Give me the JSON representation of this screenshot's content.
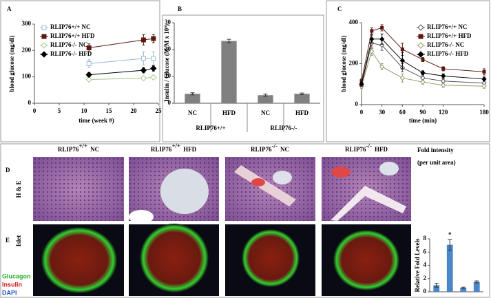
{
  "panel_labels": [
    "A",
    "B",
    "C",
    "D",
    "E"
  ],
  "chart_data": [
    {
      "type": "line",
      "xlabel": "time (week #)",
      "ylabel": "blood glucose (mg/dl)",
      "xlim": [
        0,
        25
      ],
      "xticks": [
        0,
        5,
        10,
        15,
        20,
        25
      ],
      "ylim": [
        0,
        300
      ],
      "yticks": [
        0,
        100,
        200,
        300
      ],
      "legend": "upper left",
      "x": [
        11,
        22,
        24
      ],
      "series": [
        {
          "name": "RLIP76+/+ NC",
          "color": "#9bb7d4",
          "marker": "square",
          "open": true,
          "values": [
            150,
            170,
            170
          ],
          "errors": [
            15,
            25,
            25
          ]
        },
        {
          "name": "RLIP76+/+ HFD",
          "color": "#5a1a12",
          "marker": "square",
          "open": false,
          "values": [
            210,
            240,
            245
          ],
          "errors": [
            15,
            20,
            15
          ]
        },
        {
          "name": "RLIP76-/- NC",
          "color": "#a8c48a",
          "marker": "diamond",
          "open": true,
          "values": [
            90,
            95,
            98
          ],
          "errors": [
            6,
            6,
            6
          ]
        },
        {
          "name": "RLIP76-/- HFD",
          "color": "#000000",
          "marker": "diamond",
          "open": false,
          "values": [
            108,
            125,
            132
          ],
          "errors": [
            8,
            10,
            10
          ]
        }
      ]
    },
    {
      "type": "bar",
      "ylabel": "Insulin / Glucose (M/M x 10⁹)",
      "categories": [
        "NC",
        "HFD",
        "NC",
        "HFD"
      ],
      "groups": [
        "RLIP76+/+",
        "RLIP76-/-"
      ],
      "values": [
        3.5,
        23.2,
        3.0,
        3.5
      ],
      "errors": [
        0.4,
        0.6,
        0.4,
        0.3
      ],
      "color": "#808080",
      "ylim": [
        0,
        30
      ],
      "yticks": [
        0,
        10,
        20,
        30
      ]
    },
    {
      "type": "line",
      "xlabel": "time (min)",
      "ylabel": "blood glucose (mg/dl)",
      "xlim": [
        0,
        180
      ],
      "xticks": [
        0,
        30,
        60,
        90,
        120,
        180
      ],
      "ylim": [
        0,
        400
      ],
      "yticks": [
        0,
        200,
        400
      ],
      "legend": "upper right",
      "x": [
        0,
        15,
        30,
        60,
        90,
        120,
        180
      ],
      "series": [
        {
          "name": "RLIP76+/+ NC",
          "color": "#555555",
          "marker": "diamond",
          "open": true,
          "values": [
            95,
            300,
            290,
            180,
            130,
            115,
            105
          ],
          "errors": [
            10,
            25,
            25,
            20,
            10,
            10,
            10
          ]
        },
        {
          "name": "RLIP76+/+ HFD",
          "color": "#5a1a12",
          "marker": "square",
          "open": false,
          "values": [
            115,
            360,
            375,
            270,
            220,
            175,
            160
          ],
          "errors": [
            10,
            15,
            15,
            30,
            10,
            10,
            15
          ]
        },
        {
          "name": "RLIP76-/- NC",
          "color": "#9a9a70",
          "marker": "diamond",
          "open": true,
          "values": [
            90,
            260,
            185,
            130,
            110,
            95,
            90
          ],
          "errors": [
            10,
            20,
            15,
            20,
            10,
            10,
            10
          ]
        },
        {
          "name": "RLIP76-/- HFD",
          "color": "#000000",
          "marker": "diamond",
          "open": false,
          "values": [
            100,
            320,
            320,
            215,
            155,
            140,
            125
          ],
          "errors": [
            10,
            20,
            25,
            40,
            10,
            10,
            10
          ]
        }
      ]
    },
    {
      "type": "bar",
      "ylabel": "Relative Fold Levels",
      "categories": [
        null,
        null,
        null,
        null
      ],
      "values": [
        1.0,
        7.1,
        0.6,
        1.5
      ],
      "errors": [
        0.3,
        0.8,
        0.1,
        0.15
      ],
      "color": "#4a86c8",
      "ylim": [
        0,
        8
      ],
      "yticks": [
        0,
        2,
        4,
        6,
        8
      ],
      "annotation": "*"
    }
  ],
  "images": {
    "column_titles": [
      {
        "gene": "RLIP76",
        "genotype": "+/+",
        "diet": "NC"
      },
      {
        "gene": "RLIP76",
        "genotype": "+/+",
        "diet": "HFD"
      },
      {
        "gene": "RLIP76",
        "genotype": "-/-",
        "diet": "NC"
      },
      {
        "gene": "RLIP76",
        "genotype": "-/-",
        "diet": "HFD"
      }
    ],
    "row_labels": [
      "H & E",
      "Islet"
    ],
    "fold_intensity": "Fold intensity",
    "per_unit_area": "(per unit area)",
    "stain_legend": [
      "Glucagon",
      "Insulin",
      "DAPI"
    ]
  }
}
